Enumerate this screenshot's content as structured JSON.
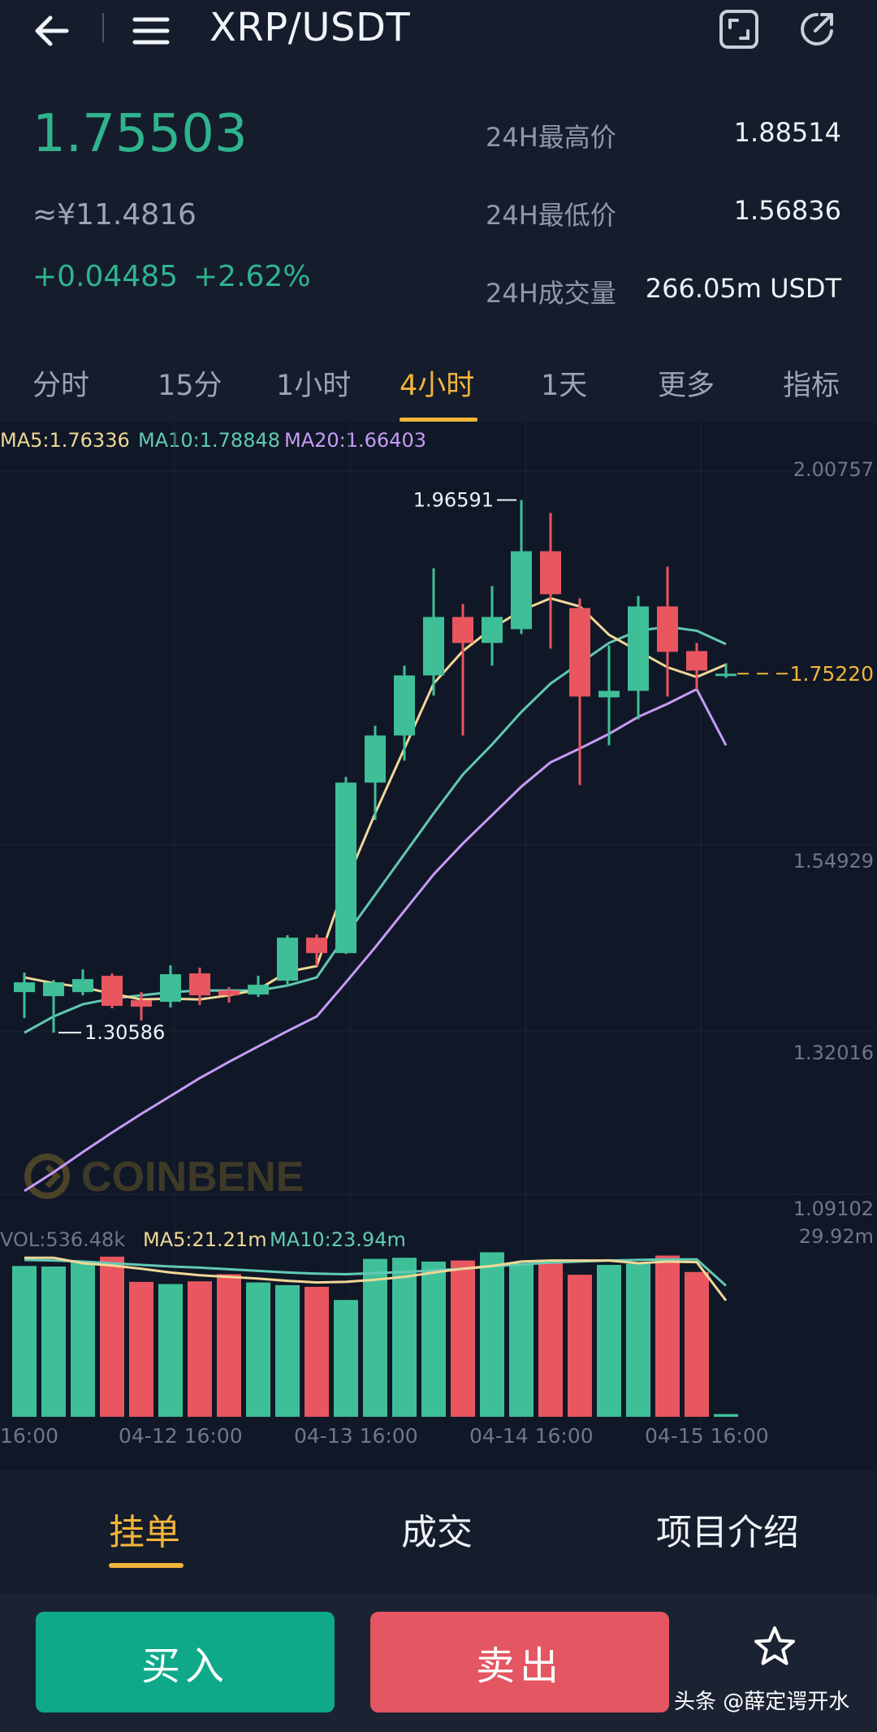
{
  "header": {
    "title": "XRP/USDT"
  },
  "ticker": {
    "price": "1.75503",
    "cny": "≈¥11.4816",
    "change": "+0.04485",
    "change_pct": "+2.62%",
    "stats": [
      {
        "label": "24H最高价",
        "value": "1.88514"
      },
      {
        "label": "24H最低价",
        "value": "1.56836"
      },
      {
        "label": "24H成交量",
        "value": "266.05m USDT"
      }
    ]
  },
  "tabs": [
    {
      "label": "分时",
      "active": false
    },
    {
      "label": "15分",
      "active": false
    },
    {
      "label": "1小时",
      "active": false
    },
    {
      "label": "4小时",
      "active": true
    },
    {
      "label": "1天",
      "active": false
    },
    {
      "label": "更多",
      "active": false
    },
    {
      "label": "指标",
      "active": false
    }
  ],
  "ma_legend": {
    "ma5": "MA5:1.76336",
    "ma10": "MA10:1.78848",
    "ma20": "MA20:1.66403"
  },
  "y_axis": {
    "labels": [
      "2.00757",
      "1.54929",
      "1.32016",
      "1.09102"
    ]
  },
  "annotations": {
    "high": "1.96591",
    "low": "1.30586",
    "last": "1.75220"
  },
  "watermark": "COINBENE",
  "vol_legend": {
    "vol": "VOL:536.48k",
    "ma5": "MA5:21.21m",
    "ma10": "MA10:23.94m",
    "max": "29.92m"
  },
  "x_axis": {
    "labels": [
      "16:00",
      "04-12 16:00",
      "04-13 16:00",
      "04-14 16:00",
      "04-15 16:00"
    ]
  },
  "colors": {
    "up": "#3fbf98",
    "down": "#e9565f",
    "ma5": "#f0d796",
    "ma10": "#62c9b4",
    "ma20": "#c79bf5",
    "accent": "#f2b43a"
  },
  "chart_data": {
    "type": "candlestick",
    "interval": "4h",
    "candles": [
      {
        "o": 1.36,
        "h": 1.384,
        "l": 1.328,
        "c": 1.372,
        "dir": "up"
      },
      {
        "o": 1.355,
        "h": 1.375,
        "l": 1.31,
        "c": 1.372,
        "dir": "up"
      },
      {
        "o": 1.36,
        "h": 1.388,
        "l": 1.356,
        "c": 1.376,
        "dir": "up"
      },
      {
        "o": 1.38,
        "h": 1.383,
        "l": 1.34,
        "c": 1.343,
        "dir": "down"
      },
      {
        "o": 1.35,
        "h": 1.36,
        "l": 1.325,
        "c": 1.342,
        "dir": "down"
      },
      {
        "o": 1.348,
        "h": 1.393,
        "l": 1.341,
        "c": 1.382,
        "dir": "up"
      },
      {
        "o": 1.383,
        "h": 1.39,
        "l": 1.344,
        "c": 1.356,
        "dir": "down"
      },
      {
        "o": 1.362,
        "h": 1.366,
        "l": 1.347,
        "c": 1.356,
        "dir": "down"
      },
      {
        "o": 1.357,
        "h": 1.38,
        "l": 1.354,
        "c": 1.369,
        "dir": "up"
      },
      {
        "o": 1.374,
        "h": 1.43,
        "l": 1.367,
        "c": 1.427,
        "dir": "up"
      },
      {
        "o": 1.427,
        "h": 1.431,
        "l": 1.392,
        "c": 1.408,
        "dir": "down"
      },
      {
        "o": 1.408,
        "h": 1.625,
        "l": 1.407,
        "c": 1.618,
        "dir": "up"
      },
      {
        "o": 1.618,
        "h": 1.688,
        "l": 1.572,
        "c": 1.676,
        "dir": "up"
      },
      {
        "o": 1.676,
        "h": 1.762,
        "l": 1.645,
        "c": 1.75,
        "dir": "up"
      },
      {
        "o": 1.75,
        "h": 1.882,
        "l": 1.725,
        "c": 1.822,
        "dir": "up"
      },
      {
        "o": 1.822,
        "h": 1.838,
        "l": 1.676,
        "c": 1.79,
        "dir": "down"
      },
      {
        "o": 1.79,
        "h": 1.86,
        "l": 1.762,
        "c": 1.822,
        "dir": "up"
      },
      {
        "o": 1.807,
        "h": 1.966,
        "l": 1.801,
        "c": 1.903,
        "dir": "up"
      },
      {
        "o": 1.903,
        "h": 1.95,
        "l": 1.783,
        "c": 1.85,
        "dir": "down"
      },
      {
        "o": 1.833,
        "h": 1.845,
        "l": 1.615,
        "c": 1.724,
        "dir": "down"
      },
      {
        "o": 1.723,
        "h": 1.787,
        "l": 1.664,
        "c": 1.731,
        "dir": "up"
      },
      {
        "o": 1.731,
        "h": 1.848,
        "l": 1.696,
        "c": 1.835,
        "dir": "up"
      },
      {
        "o": 1.835,
        "h": 1.884,
        "l": 1.724,
        "c": 1.779,
        "dir": "down"
      },
      {
        "o": 1.78,
        "h": 1.79,
        "l": 1.733,
        "c": 1.756,
        "dir": "down"
      },
      {
        "o": 1.751,
        "h": 1.765,
        "l": 1.747,
        "c": 1.7522,
        "dir": "up"
      }
    ],
    "ma5": [
      1.378,
      1.371,
      1.366,
      1.358,
      1.351,
      1.352,
      1.351,
      1.356,
      1.363,
      1.385,
      1.392,
      1.495,
      1.58,
      1.66,
      1.74,
      1.78,
      1.808,
      1.83,
      1.845,
      1.835,
      1.8,
      1.78,
      1.76,
      1.748,
      1.7634
    ],
    "ma10": [
      1.31,
      1.33,
      1.345,
      1.352,
      1.356,
      1.36,
      1.362,
      1.362,
      1.362,
      1.368,
      1.378,
      1.43,
      1.48,
      1.53,
      1.58,
      1.628,
      1.665,
      1.705,
      1.74,
      1.765,
      1.79,
      1.805,
      1.81,
      1.805,
      1.7885
    ],
    "ma20": [
      1.115,
      1.138,
      1.163,
      1.187,
      1.21,
      1.232,
      1.254,
      1.274,
      1.293,
      1.312,
      1.33,
      1.372,
      1.415,
      1.46,
      1.505,
      1.543,
      1.578,
      1.613,
      1.643,
      1.66,
      1.678,
      1.699,
      1.715,
      1.733,
      1.664
    ],
    "volume": [
      27.5,
      27.4,
      28.4,
      29.2,
      24.6,
      24.2,
      24.7,
      26.0,
      24.5,
      24.0,
      23.7,
      21.3,
      28.8,
      29.0,
      28.3,
      28.5,
      30.0,
      28.0,
      28.0,
      25.9,
      27.7,
      27.9,
      29.4,
      26.4,
      0.5
    ],
    "volume_ma5": [
      29.0,
      29.0,
      28.0,
      27.6,
      27.0,
      26.3,
      25.8,
      25.5,
      25.2,
      24.8,
      24.5,
      24.6,
      25.0,
      25.5,
      26.3,
      27.0,
      27.5,
      28.3,
      28.5,
      28.5,
      28.5,
      28.0,
      28.3,
      28.2,
      21.2
    ],
    "volume_ma10": [
      28.6,
      28.5,
      28.3,
      28.0,
      27.7,
      27.4,
      27.2,
      26.9,
      26.6,
      26.3,
      26.1,
      26.0,
      26.2,
      26.4,
      26.7,
      27.0,
      27.4,
      27.8,
      28.1,
      28.3,
      28.5,
      28.6,
      28.7,
      28.7,
      23.9
    ],
    "price_range": [
      1.09102,
      2.00757
    ],
    "volume_max": 29.92
  },
  "subtabs": [
    {
      "label": "挂单",
      "active": true
    },
    {
      "label": "成交",
      "active": false
    },
    {
      "label": "项目介绍",
      "active": false
    }
  ],
  "actions": {
    "buy": "买入",
    "sell": "卖出"
  },
  "footer_watermark": "头条 @薛定谔开水"
}
